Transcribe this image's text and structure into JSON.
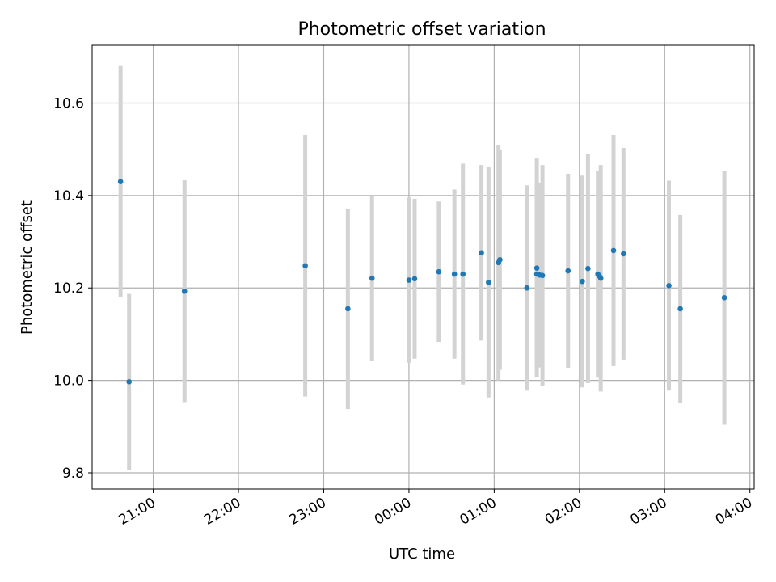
{
  "chart_data": {
    "type": "scatter",
    "title": "Photometric offset variation",
    "xlabel": "UTC time",
    "ylabel": "Photometric offset",
    "xlim": [
      "20:17",
      "04:03"
    ],
    "ylim": [
      9.765,
      10.725
    ],
    "grid": true,
    "colors": {
      "point": "#1f77b4",
      "errorbar": "#d3d3d3",
      "grid": "#b0b0b0"
    },
    "x_ticks": [
      "21:00",
      "22:00",
      "23:00",
      "00:00",
      "01:00",
      "02:00",
      "03:00",
      "04:00"
    ],
    "y_ticks": [
      "9.8",
      "10.0",
      "10.2",
      "10.4",
      "10.6"
    ],
    "points": [
      {
        "time": "20:37",
        "y": 10.43,
        "err": 0.25
      },
      {
        "time": "20:43",
        "y": 9.997,
        "err": 0.19
      },
      {
        "time": "21:22",
        "y": 10.193,
        "err": 0.24
      },
      {
        "time": "22:47",
        "y": 10.248,
        "err": 0.283
      },
      {
        "time": "23:17",
        "y": 10.155,
        "err": 0.217
      },
      {
        "time": "23:34",
        "y": 10.221,
        "err": 0.179
      },
      {
        "time": "00:00",
        "y": 10.217,
        "err": 0.179
      },
      {
        "time": "00:04",
        "y": 10.22,
        "err": 0.173
      },
      {
        "time": "00:21",
        "y": 10.235,
        "err": 0.152
      },
      {
        "time": "00:32",
        "y": 10.23,
        "err": 0.183
      },
      {
        "time": "00:38",
        "y": 10.23,
        "err": 0.239
      },
      {
        "time": "00:51",
        "y": 10.276,
        "err": 0.19
      },
      {
        "time": "00:56",
        "y": 10.212,
        "err": 0.249
      },
      {
        "time": "01:03",
        "y": 10.255,
        "err": 0.255
      },
      {
        "time": "01:04",
        "y": 10.261,
        "err": 0.238
      },
      {
        "time": "01:23",
        "y": 10.2,
        "err": 0.222
      },
      {
        "time": "01:30",
        "y": 10.243,
        "err": 0.237
      },
      {
        "time": "01:30",
        "y": 10.23,
        "err": 0.2
      },
      {
        "time": "01:32",
        "y": 10.228,
        "err": 0.2
      },
      {
        "time": "01:34",
        "y": 10.227,
        "err": 0.239
      },
      {
        "time": "01:52",
        "y": 10.237,
        "err": 0.21
      },
      {
        "time": "02:02",
        "y": 10.214,
        "err": 0.229
      },
      {
        "time": "02:06",
        "y": 10.242,
        "err": 0.248
      },
      {
        "time": "02:13",
        "y": 10.23,
        "err": 0.224
      },
      {
        "time": "02:14",
        "y": 10.226,
        "err": 0.22
      },
      {
        "time": "02:15",
        "y": 10.221,
        "err": 0.245
      },
      {
        "time": "02:24",
        "y": 10.281,
        "err": 0.25
      },
      {
        "time": "02:31",
        "y": 10.274,
        "err": 0.229
      },
      {
        "time": "03:03",
        "y": 10.205,
        "err": 0.227
      },
      {
        "time": "03:11",
        "y": 10.155,
        "err": 0.203
      },
      {
        "time": "03:42",
        "y": 10.179,
        "err": 0.275
      }
    ]
  }
}
